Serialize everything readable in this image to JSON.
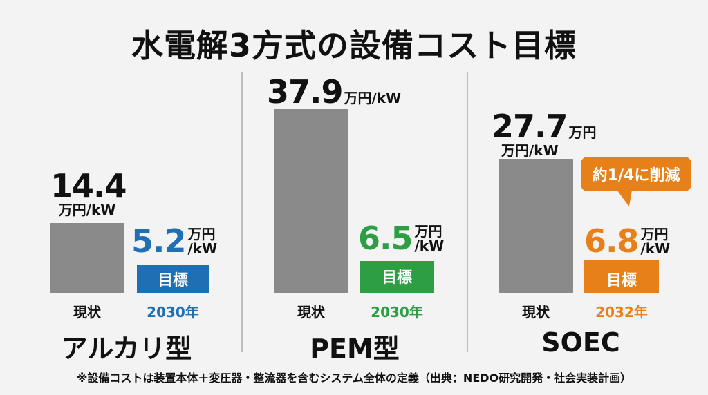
{
  "title": "水電解3方式の設備コスト目標",
  "unit_line": "万円/kW",
  "unit_top": "万円",
  "unit_bottom": "/kW",
  "target_label": "目標",
  "current_label": "現状",
  "colors": {
    "current": "#8a8a8a",
    "alkaline": "#1f6fb5",
    "pem": "#2e9e45",
    "soec": "#e8801a"
  },
  "chart_data": {
    "type": "bar",
    "title": "水電解3方式の設備コスト目標",
    "unit": "万円/kW",
    "panels": [
      {
        "name": "アルカリ型",
        "categories": [
          "現状",
          "2030年"
        ],
        "values": [
          14.4,
          5.2
        ],
        "labels": [
          "14.4",
          "5.2"
        ],
        "target_year": "2030年"
      },
      {
        "name": "PEM型",
        "categories": [
          "現状",
          "2030年"
        ],
        "values": [
          37.9,
          6.5
        ],
        "labels": [
          "37.9",
          "6.5"
        ],
        "target_year": "2030年"
      },
      {
        "name": "SOEC",
        "categories": [
          "現状",
          "2032年"
        ],
        "values": [
          27.7,
          6.8
        ],
        "labels": [
          "27.7",
          "6.8"
        ],
        "target_year": "2032年"
      }
    ],
    "annotation": "約1/4に削減"
  },
  "footnote": "※設備コストは装置本体＋変圧器・整流器を含むシステム全体の定義（出典：NEDO研究開発・社会実装計画）"
}
